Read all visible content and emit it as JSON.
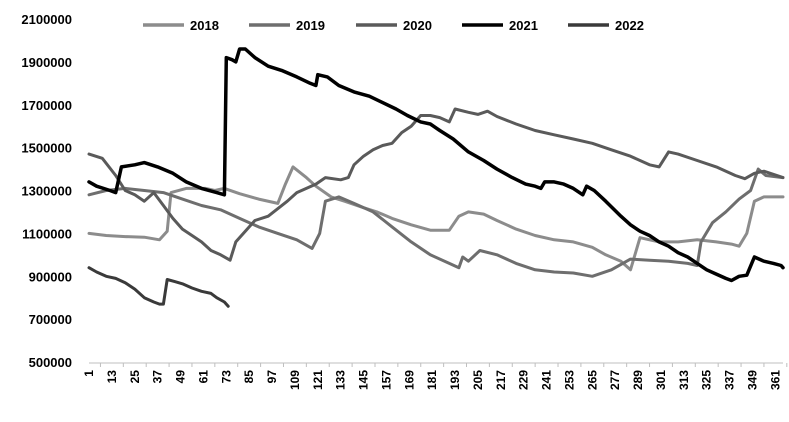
{
  "chart_data": {
    "type": "line",
    "title": "",
    "xlabel": "",
    "ylabel": "",
    "ylim": [
      500000,
      2100000
    ],
    "xlim": [
      1,
      365
    ],
    "y_ticks": [
      500000,
      700000,
      900000,
      1100000,
      1300000,
      1500000,
      1700000,
      1900000,
      2100000
    ],
    "y_tick_labels": [
      "500000",
      "700000",
      "900000",
      "1100000",
      "1300000",
      "1500000",
      "1700000",
      "1900000",
      "2100000"
    ],
    "x_ticks": [
      1,
      13,
      25,
      37,
      49,
      61,
      73,
      85,
      97,
      109,
      121,
      133,
      145,
      157,
      169,
      181,
      193,
      205,
      217,
      229,
      241,
      253,
      265,
      277,
      289,
      301,
      313,
      325,
      337,
      349,
      361
    ],
    "x_tick_labels": [
      "1",
      "13",
      "25",
      "37",
      "49",
      "61",
      "73",
      "85",
      "97",
      "109",
      "121",
      "133",
      "145",
      "157",
      "169",
      "181",
      "193",
      "205",
      "217",
      "229",
      "241",
      "253",
      "265",
      "277",
      "289",
      "301",
      "313",
      "325",
      "337",
      "349",
      "361"
    ],
    "grid": false,
    "legend": "top",
    "series": [
      {
        "name": "2018",
        "color": "#8c8c8c",
        "width": 3,
        "points": [
          [
            1,
            1100000
          ],
          [
            10,
            1090000
          ],
          [
            20,
            1085000
          ],
          [
            30,
            1082000
          ],
          [
            38,
            1070000
          ],
          [
            42,
            1110000
          ],
          [
            44,
            1290000
          ],
          [
            52,
            1310000
          ],
          [
            62,
            1310000
          ],
          [
            67,
            1300000
          ],
          [
            72,
            1310000
          ],
          [
            80,
            1285000
          ],
          [
            90,
            1260000
          ],
          [
            100,
            1240000
          ],
          [
            104,
            1330000
          ],
          [
            108,
            1410000
          ],
          [
            115,
            1360000
          ],
          [
            120,
            1320000
          ],
          [
            128,
            1270000
          ],
          [
            135,
            1250000
          ],
          [
            145,
            1220000
          ],
          [
            152,
            1200000
          ],
          [
            160,
            1170000
          ],
          [
            170,
            1140000
          ],
          [
            180,
            1115000
          ],
          [
            190,
            1115000
          ],
          [
            195,
            1180000
          ],
          [
            200,
            1200000
          ],
          [
            208,
            1190000
          ],
          [
            215,
            1160000
          ],
          [
            225,
            1120000
          ],
          [
            235,
            1090000
          ],
          [
            245,
            1070000
          ],
          [
            255,
            1060000
          ],
          [
            265,
            1035000
          ],
          [
            272,
            1000000
          ],
          [
            280,
            970000
          ],
          [
            285,
            930000
          ],
          [
            290,
            1080000
          ],
          [
            300,
            1060000
          ],
          [
            310,
            1060000
          ],
          [
            320,
            1070000
          ],
          [
            330,
            1060000
          ],
          [
            338,
            1050000
          ],
          [
            342,
            1040000
          ],
          [
            346,
            1100000
          ],
          [
            350,
            1250000
          ],
          [
            355,
            1270000
          ],
          [
            362,
            1270000
          ],
          [
            365,
            1270000
          ]
        ]
      },
      {
        "name": "2019",
        "color": "#6e6e6e",
        "width": 3,
        "points": [
          [
            1,
            1280000
          ],
          [
            10,
            1300000
          ],
          [
            20,
            1310000
          ],
          [
            30,
            1300000
          ],
          [
            40,
            1290000
          ],
          [
            50,
            1260000
          ],
          [
            60,
            1230000
          ],
          [
            70,
            1210000
          ],
          [
            80,
            1170000
          ],
          [
            90,
            1130000
          ],
          [
            100,
            1100000
          ],
          [
            110,
            1070000
          ],
          [
            118,
            1030000
          ],
          [
            122,
            1100000
          ],
          [
            125,
            1250000
          ],
          [
            132,
            1270000
          ],
          [
            140,
            1240000
          ],
          [
            150,
            1200000
          ],
          [
            160,
            1130000
          ],
          [
            170,
            1060000
          ],
          [
            180,
            1000000
          ],
          [
            190,
            960000
          ],
          [
            195,
            940000
          ],
          [
            197,
            990000
          ],
          [
            200,
            970000
          ],
          [
            206,
            1020000
          ],
          [
            215,
            1000000
          ],
          [
            225,
            960000
          ],
          [
            235,
            930000
          ],
          [
            245,
            920000
          ],
          [
            255,
            915000
          ],
          [
            265,
            900000
          ],
          [
            275,
            930000
          ],
          [
            285,
            980000
          ],
          [
            295,
            975000
          ],
          [
            305,
            970000
          ],
          [
            315,
            960000
          ],
          [
            320,
            950000
          ],
          [
            322,
            1060000
          ],
          [
            328,
            1150000
          ],
          [
            335,
            1200000
          ],
          [
            342,
            1260000
          ],
          [
            348,
            1300000
          ],
          [
            352,
            1400000
          ],
          [
            356,
            1370000
          ],
          [
            365,
            1360000
          ]
        ]
      },
      {
        "name": "2020",
        "color": "#5a5a5a",
        "width": 3,
        "points": [
          [
            1,
            1470000
          ],
          [
            8,
            1450000
          ],
          [
            15,
            1370000
          ],
          [
            20,
            1300000
          ],
          [
            25,
            1280000
          ],
          [
            30,
            1250000
          ],
          [
            35,
            1290000
          ],
          [
            40,
            1230000
          ],
          [
            45,
            1170000
          ],
          [
            50,
            1120000
          ],
          [
            55,
            1090000
          ],
          [
            60,
            1060000
          ],
          [
            65,
            1020000
          ],
          [
            70,
            1000000
          ],
          [
            75,
            975000
          ],
          [
            78,
            1060000
          ],
          [
            82,
            1100000
          ],
          [
            88,
            1160000
          ],
          [
            95,
            1180000
          ],
          [
            105,
            1250000
          ],
          [
            110,
            1290000
          ],
          [
            120,
            1330000
          ],
          [
            125,
            1360000
          ],
          [
            133,
            1350000
          ],
          [
            137,
            1360000
          ],
          [
            140,
            1420000
          ],
          [
            145,
            1460000
          ],
          [
            150,
            1490000
          ],
          [
            155,
            1510000
          ],
          [
            160,
            1520000
          ],
          [
            165,
            1570000
          ],
          [
            170,
            1600000
          ],
          [
            175,
            1650000
          ],
          [
            180,
            1650000
          ],
          [
            185,
            1640000
          ],
          [
            190,
            1620000
          ],
          [
            193,
            1680000
          ],
          [
            200,
            1665000
          ],
          [
            205,
            1655000
          ],
          [
            210,
            1670000
          ],
          [
            215,
            1645000
          ],
          [
            225,
            1610000
          ],
          [
            235,
            1580000
          ],
          [
            245,
            1560000
          ],
          [
            255,
            1540000
          ],
          [
            265,
            1520000
          ],
          [
            275,
            1490000
          ],
          [
            285,
            1460000
          ],
          [
            295,
            1420000
          ],
          [
            300,
            1410000
          ],
          [
            305,
            1480000
          ],
          [
            310,
            1470000
          ],
          [
            320,
            1440000
          ],
          [
            330,
            1410000
          ],
          [
            340,
            1370000
          ],
          [
            345,
            1355000
          ],
          [
            350,
            1380000
          ],
          [
            355,
            1390000
          ],
          [
            365,
            1360000
          ]
        ]
      },
      {
        "name": "2021",
        "color": "#000000",
        "width": 3.5,
        "points": [
          [
            1,
            1340000
          ],
          [
            5,
            1320000
          ],
          [
            12,
            1300000
          ],
          [
            15,
            1290000
          ],
          [
            18,
            1410000
          ],
          [
            25,
            1420000
          ],
          [
            30,
            1430000
          ],
          [
            37,
            1410000
          ],
          [
            45,
            1380000
          ],
          [
            52,
            1340000
          ],
          [
            60,
            1310000
          ],
          [
            68,
            1290000
          ],
          [
            72,
            1280000
          ],
          [
            73,
            1920000
          ],
          [
            76,
            1910000
          ],
          [
            78,
            1900000
          ],
          [
            80,
            1960000
          ],
          [
            83,
            1960000
          ],
          [
            88,
            1920000
          ],
          [
            95,
            1880000
          ],
          [
            102,
            1860000
          ],
          [
            110,
            1830000
          ],
          [
            117,
            1800000
          ],
          [
            120,
            1790000
          ],
          [
            121,
            1840000
          ],
          [
            126,
            1830000
          ],
          [
            132,
            1790000
          ],
          [
            140,
            1760000
          ],
          [
            148,
            1740000
          ],
          [
            155,
            1710000
          ],
          [
            162,
            1680000
          ],
          [
            168,
            1650000
          ],
          [
            175,
            1620000
          ],
          [
            180,
            1610000
          ],
          [
            185,
            1580000
          ],
          [
            192,
            1540000
          ],
          [
            200,
            1480000
          ],
          [
            208,
            1440000
          ],
          [
            215,
            1400000
          ],
          [
            223,
            1360000
          ],
          [
            230,
            1330000
          ],
          [
            235,
            1320000
          ],
          [
            238,
            1310000
          ],
          [
            240,
            1340000
          ],
          [
            245,
            1340000
          ],
          [
            250,
            1330000
          ],
          [
            255,
            1310000
          ],
          [
            260,
            1280000
          ],
          [
            262,
            1320000
          ],
          [
            266,
            1300000
          ],
          [
            272,
            1250000
          ],
          [
            280,
            1180000
          ],
          [
            285,
            1140000
          ],
          [
            290,
            1110000
          ],
          [
            295,
            1090000
          ],
          [
            300,
            1060000
          ],
          [
            305,
            1040000
          ],
          [
            310,
            1010000
          ],
          [
            315,
            990000
          ],
          [
            320,
            960000
          ],
          [
            325,
            930000
          ],
          [
            330,
            910000
          ],
          [
            335,
            890000
          ],
          [
            338,
            880000
          ],
          [
            342,
            900000
          ],
          [
            346,
            905000
          ],
          [
            350,
            990000
          ],
          [
            355,
            970000
          ],
          [
            360,
            960000
          ],
          [
            364,
            950000
          ],
          [
            365,
            940000
          ]
        ]
      },
      {
        "name": "2022",
        "color": "#3a3a3a",
        "width": 3,
        "points": [
          [
            1,
            940000
          ],
          [
            5,
            920000
          ],
          [
            10,
            900000
          ],
          [
            15,
            890000
          ],
          [
            20,
            870000
          ],
          [
            25,
            840000
          ],
          [
            30,
            800000
          ],
          [
            35,
            780000
          ],
          [
            38,
            770000
          ],
          [
            40,
            770000
          ],
          [
            42,
            885000
          ],
          [
            46,
            875000
          ],
          [
            50,
            865000
          ],
          [
            55,
            845000
          ],
          [
            60,
            830000
          ],
          [
            65,
            820000
          ],
          [
            68,
            800000
          ],
          [
            72,
            780000
          ],
          [
            74,
            760000
          ]
        ]
      }
    ]
  }
}
